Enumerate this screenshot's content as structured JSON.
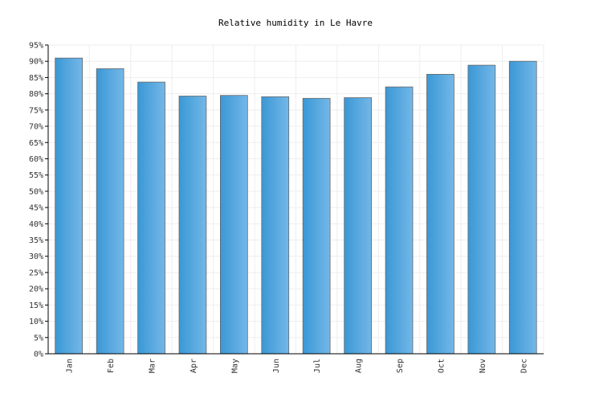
{
  "chart_data": {
    "type": "bar",
    "title": "Relative humidity in Le Havre",
    "xlabel": "",
    "ylabel": "",
    "categories": [
      "Jan",
      "Feb",
      "Mar",
      "Apr",
      "May",
      "Jun",
      "Jul",
      "Aug",
      "Sep",
      "Oct",
      "Nov",
      "Dec"
    ],
    "values": [
      91,
      87.7,
      83.6,
      79.3,
      79.5,
      79.1,
      78.6,
      78.8,
      82.1,
      86,
      88.8,
      90
    ],
    "ylim": [
      0,
      95
    ],
    "ytick_step": 5,
    "ytick_suffix": "%",
    "grid": true,
    "legend": "none",
    "bar_color_light": "#74b7e8",
    "bar_color_dark": "#3a98d5",
    "bar_outline": "#666666",
    "grid_color": "#eeeeee"
  }
}
